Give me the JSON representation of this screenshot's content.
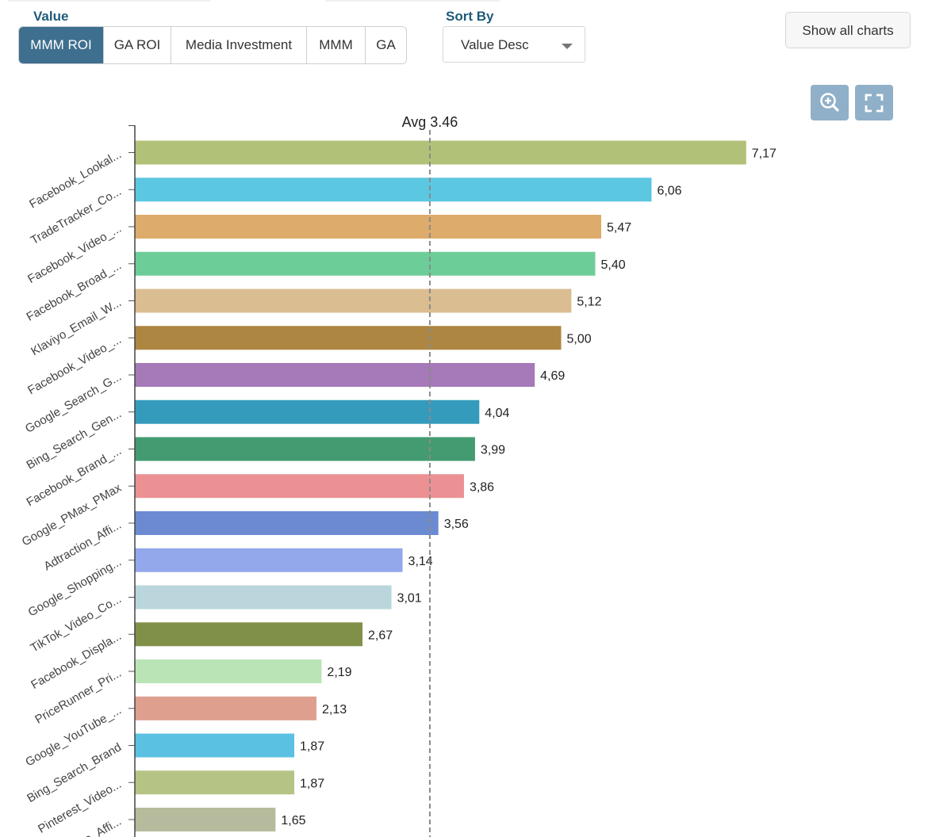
{
  "controls": {
    "value_label": "Value",
    "value_options": [
      "MMM ROI",
      "GA ROI",
      "Media Investment",
      "MMM",
      "GA"
    ],
    "value_selected": "MMM ROI",
    "sort_label": "Sort By",
    "sort_value": "Value Desc",
    "show_all_label": "Show all charts",
    "zoom_icon": "zoom-in-icon",
    "fullscreen_icon": "fullscreen-icon"
  },
  "chart_data": {
    "type": "bar",
    "orientation": "horizontal",
    "categories": [
      "Facebook_Lookal...",
      "TradeTracker_Co...",
      "Facebook_Video_...",
      "Facebook_Broad_...",
      "Klaviyo_Email_W...",
      "Facebook_Video_...",
      "Google_Search_G...",
      "Bing_Search_Gen...",
      "Facebook_Brand_...",
      "Google_PMax_PMax",
      "Adtraction_Affi...",
      "Google_Shopping...",
      "TikTok_Video_Co...",
      "Facebook_Displa...",
      "PriceRunner_Pri...",
      "Google_YouTube_...",
      "Bing_Search_Brand",
      "Pinterest_Video...",
      "...e_Affi..."
    ],
    "values": [
      7.17,
      6.06,
      5.47,
      5.4,
      5.12,
      5.0,
      4.69,
      4.04,
      3.99,
      3.86,
      3.56,
      3.14,
      3.01,
      2.67,
      2.19,
      2.13,
      1.87,
      1.87,
      1.65
    ],
    "value_labels": [
      "7,17",
      "6,06",
      "5,47",
      "5,40",
      "5,12",
      "5,00",
      "4,69",
      "4,04",
      "3,99",
      "3,86",
      "3,56",
      "3,14",
      "3,01",
      "2,67",
      "2,19",
      "2,13",
      "1,87",
      "1,87",
      "1,65"
    ],
    "colors": [
      "#b1c278",
      "#5bc7e0",
      "#ddab6b",
      "#6dcd98",
      "#dbbd92",
      "#ad8641",
      "#a679b8",
      "#359bbc",
      "#439b71",
      "#eb9194",
      "#6b8ad1",
      "#92a8ea",
      "#bad6dc",
      "#819049",
      "#bbe4b6",
      "#de9f8f",
      "#5bc1e3",
      "#b5c485",
      "#b7bb9d"
    ],
    "average": {
      "value": 3.46,
      "label": "Avg 3.46"
    },
    "xlim": [
      0,
      10.4
    ],
    "grid": false,
    "legend": "none"
  }
}
